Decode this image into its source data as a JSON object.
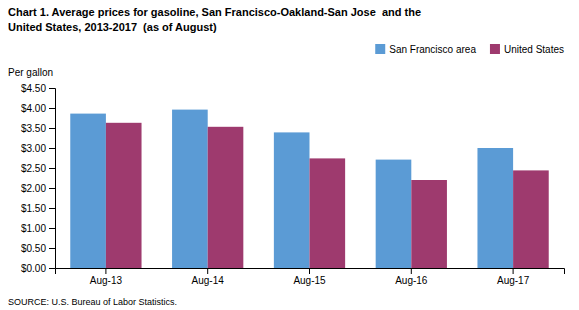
{
  "chart_data": {
    "type": "bar",
    "title": "Chart 1. Average prices for gasoline, San Francisco-Oakland-San Jose  and the\nUnited States, 2013-2017  (as of August)",
    "ylabel": "Per gallon",
    "categories": [
      "Aug-13",
      "Aug-14",
      "Aug-15",
      "Aug-16",
      "Aug-17"
    ],
    "series": [
      {
        "name": "San Francisco area",
        "color": "#5B9BD5",
        "values": [
          3.86,
          3.96,
          3.39,
          2.71,
          3.0
        ]
      },
      {
        "name": "United States",
        "color": "#9E3A6E",
        "values": [
          3.63,
          3.53,
          2.74,
          2.2,
          2.44
        ]
      }
    ],
    "ylim": [
      0,
      4.5
    ],
    "yticks": [
      {
        "value": 0.0,
        "label": "$0.00"
      },
      {
        "value": 0.5,
        "label": "$0.50"
      },
      {
        "value": 1.0,
        "label": "$1.00"
      },
      {
        "value": 1.5,
        "label": "$1.50"
      },
      {
        "value": 2.0,
        "label": "$2.00"
      },
      {
        "value": 2.5,
        "label": "$2.50"
      },
      {
        "value": 3.0,
        "label": "$3.00"
      },
      {
        "value": 3.5,
        "label": "$3.50"
      },
      {
        "value": 4.0,
        "label": "$4.00"
      },
      {
        "value": 4.5,
        "label": "$4.50"
      }
    ],
    "annotations": [
      "SOURCE: U.S. Bureau of Labor Statistics."
    ],
    "legend": "upper right",
    "grid": false
  }
}
